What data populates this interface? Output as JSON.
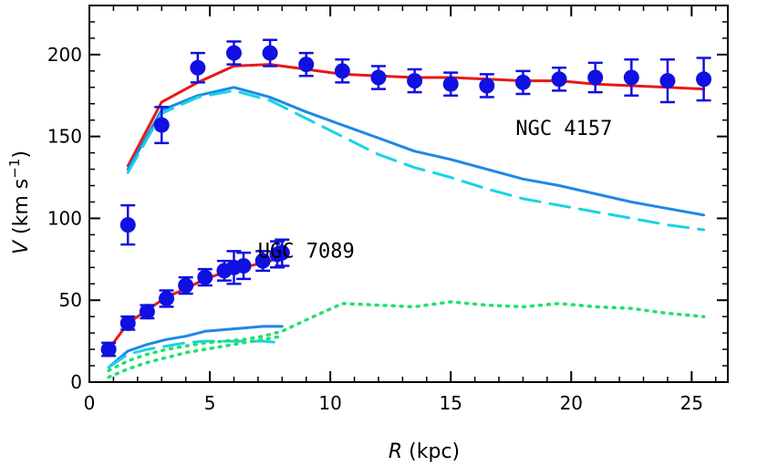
{
  "chart_data": {
    "type": "scatter",
    "xlabel": {
      "symbol": "R",
      "unit": "(kpc)"
    },
    "ylabel": {
      "symbol": "V",
      "unit_main": "(km s",
      "unit_exp": "−1",
      "unit_close": ")"
    },
    "xlim": [
      0,
      26.5
    ],
    "ylim": [
      0,
      230
    ],
    "xticks": [
      0,
      5,
      10,
      15,
      20,
      25
    ],
    "yticks": [
      0,
      50,
      100,
      150,
      200
    ],
    "xtick_labels": [
      "0",
      "5",
      "10",
      "15",
      "20",
      "25"
    ],
    "ytick_labels": [
      "0",
      "50",
      "100",
      "150",
      "200"
    ],
    "annotations": [
      {
        "text": "NGC 4157",
        "x": 19.7,
        "y": 151
      },
      {
        "text": "UGC 7089",
        "x": 9.0,
        "y": 76
      }
    ],
    "series": [
      {
        "kind": "points",
        "color": "#1010e0",
        "points": [
          {
            "x": 1.6,
            "y": 96,
            "err": 12
          },
          {
            "x": 3.0,
            "y": 157,
            "err": 11
          },
          {
            "x": 4.5,
            "y": 192,
            "err": 9
          },
          {
            "x": 6.0,
            "y": 201,
            "err": 7
          },
          {
            "x": 7.5,
            "y": 201,
            "err": 8
          },
          {
            "x": 9.0,
            "y": 194,
            "err": 7
          },
          {
            "x": 10.5,
            "y": 190,
            "err": 7
          },
          {
            "x": 12.0,
            "y": 186,
            "err": 7
          },
          {
            "x": 13.5,
            "y": 184,
            "err": 7
          },
          {
            "x": 15.0,
            "y": 182,
            "err": 7
          },
          {
            "x": 16.5,
            "y": 181,
            "err": 7
          },
          {
            "x": 18.0,
            "y": 183,
            "err": 7
          },
          {
            "x": 19.5,
            "y": 185,
            "err": 7
          },
          {
            "x": 21.0,
            "y": 186,
            "err": 9
          },
          {
            "x": 22.5,
            "y": 186,
            "err": 11
          },
          {
            "x": 24.0,
            "y": 184,
            "err": 13
          },
          {
            "x": 25.5,
            "y": 185,
            "err": 13
          }
        ]
      },
      {
        "kind": "points",
        "color": "#1010e0",
        "points": [
          {
            "x": 0.8,
            "y": 20,
            "err": 4
          },
          {
            "x": 1.6,
            "y": 36,
            "err": 4
          },
          {
            "x": 2.4,
            "y": 43,
            "err": 4
          },
          {
            "x": 3.2,
            "y": 51,
            "err": 5
          },
          {
            "x": 4.0,
            "y": 59,
            "err": 5
          },
          {
            "x": 4.8,
            "y": 64,
            "err": 5
          },
          {
            "x": 5.6,
            "y": 68,
            "err": 6
          },
          {
            "x": 6.0,
            "y": 70,
            "err": 10
          },
          {
            "x": 6.4,
            "y": 71,
            "err": 8
          },
          {
            "x": 7.2,
            "y": 74,
            "err": 6
          },
          {
            "x": 7.8,
            "y": 78,
            "err": 8
          },
          {
            "x": 8.0,
            "y": 79,
            "err": 8
          }
        ]
      },
      {
        "kind": "line",
        "style": "solid",
        "color": "#e81818",
        "points": [
          [
            1.6,
            132
          ],
          [
            3.0,
            171
          ],
          [
            4.5,
            183
          ],
          [
            6.0,
            193
          ],
          [
            7.5,
            194
          ],
          [
            9.0,
            191
          ],
          [
            10.5,
            188
          ],
          [
            12.0,
            187
          ],
          [
            13.5,
            186
          ],
          [
            15.0,
            186
          ],
          [
            16.5,
            185
          ],
          [
            18.0,
            184
          ],
          [
            19.5,
            184
          ],
          [
            21.0,
            182
          ],
          [
            22.5,
            181
          ],
          [
            24.0,
            180
          ],
          [
            25.5,
            179
          ]
        ]
      },
      {
        "kind": "line",
        "style": "solid",
        "color": "#1e88e5",
        "points": [
          [
            1.6,
            130
          ],
          [
            3.0,
            166
          ],
          [
            4.5,
            175
          ],
          [
            6.0,
            180
          ],
          [
            7.5,
            174
          ],
          [
            9.0,
            165
          ],
          [
            10.5,
            157
          ],
          [
            12.0,
            149
          ],
          [
            13.5,
            141
          ],
          [
            15.0,
            136
          ],
          [
            16.5,
            130
          ],
          [
            18.0,
            124
          ],
          [
            19.5,
            120
          ],
          [
            21.0,
            115
          ],
          [
            22.5,
            110
          ],
          [
            24.0,
            106
          ],
          [
            25.5,
            102
          ]
        ]
      },
      {
        "kind": "line",
        "style": "dashed",
        "color": "#19d3e6",
        "points": [
          [
            1.6,
            128
          ],
          [
            3.0,
            164
          ],
          [
            4.5,
            174
          ],
          [
            6.0,
            178
          ],
          [
            7.5,
            172
          ],
          [
            9.0,
            161
          ],
          [
            10.5,
            150
          ],
          [
            12.0,
            139
          ],
          [
            13.5,
            131
          ],
          [
            15.0,
            125
          ],
          [
            16.5,
            118
          ],
          [
            18.0,
            112
          ],
          [
            19.5,
            108
          ],
          [
            21.0,
            104
          ],
          [
            22.5,
            100
          ],
          [
            24.0,
            96
          ],
          [
            25.5,
            93
          ]
        ]
      },
      {
        "kind": "line",
        "style": "solid",
        "color": "#e81818",
        "points": [
          [
            0.8,
            20
          ],
          [
            1.6,
            36
          ],
          [
            2.4,
            44
          ],
          [
            3.2,
            52
          ],
          [
            4.0,
            57
          ],
          [
            4.8,
            63
          ],
          [
            5.6,
            67
          ],
          [
            6.4,
            70
          ],
          [
            7.2,
            73
          ],
          [
            8.0,
            76
          ]
        ]
      },
      {
        "kind": "line",
        "style": "solid",
        "color": "#1e88e5",
        "points": [
          [
            0.8,
            9
          ],
          [
            1.6,
            19
          ],
          [
            2.4,
            23
          ],
          [
            3.2,
            26
          ],
          [
            4.0,
            28
          ],
          [
            4.8,
            31
          ],
          [
            5.6,
            32
          ],
          [
            6.4,
            33
          ],
          [
            7.2,
            34
          ],
          [
            8.0,
            34
          ]
        ]
      },
      {
        "kind": "line",
        "style": "dashed",
        "color": "#19d3e6",
        "points": [
          [
            0.8,
            9
          ],
          [
            1.6,
            17
          ],
          [
            2.4,
            20
          ],
          [
            3.2,
            22
          ],
          [
            4.0,
            24
          ],
          [
            4.8,
            25
          ],
          [
            5.6,
            25
          ],
          [
            6.4,
            25
          ],
          [
            7.2,
            25
          ],
          [
            8.0,
            24
          ]
        ]
      },
      {
        "kind": "line",
        "style": "dotted",
        "color": "#22e070",
        "points": [
          [
            0.8,
            3
          ],
          [
            1.6,
            8
          ],
          [
            2.4,
            12
          ],
          [
            3.2,
            15
          ],
          [
            4.0,
            18
          ],
          [
            4.8,
            20
          ],
          [
            5.6,
            22
          ],
          [
            6.4,
            24
          ],
          [
            7.2,
            26
          ],
          [
            8.0,
            28
          ]
        ]
      },
      {
        "kind": "line",
        "style": "dotted",
        "color": "#22e070",
        "points": [
          [
            0.8,
            7
          ],
          [
            1.6,
            13
          ],
          [
            2.4,
            17
          ],
          [
            3.2,
            20
          ],
          [
            4.0,
            22
          ],
          [
            4.8,
            24
          ],
          [
            5.6,
            25
          ],
          [
            6.4,
            26
          ],
          [
            7.2,
            28
          ],
          [
            8.0,
            31
          ],
          [
            9.0,
            38
          ],
          [
            10.5,
            48
          ],
          [
            12.0,
            47
          ],
          [
            13.5,
            46
          ],
          [
            15.0,
            49
          ],
          [
            16.5,
            47
          ],
          [
            18.0,
            46
          ],
          [
            19.5,
            48
          ],
          [
            21.0,
            46
          ],
          [
            22.5,
            45
          ],
          [
            24.0,
            42
          ],
          [
            25.5,
            40
          ]
        ]
      }
    ]
  }
}
